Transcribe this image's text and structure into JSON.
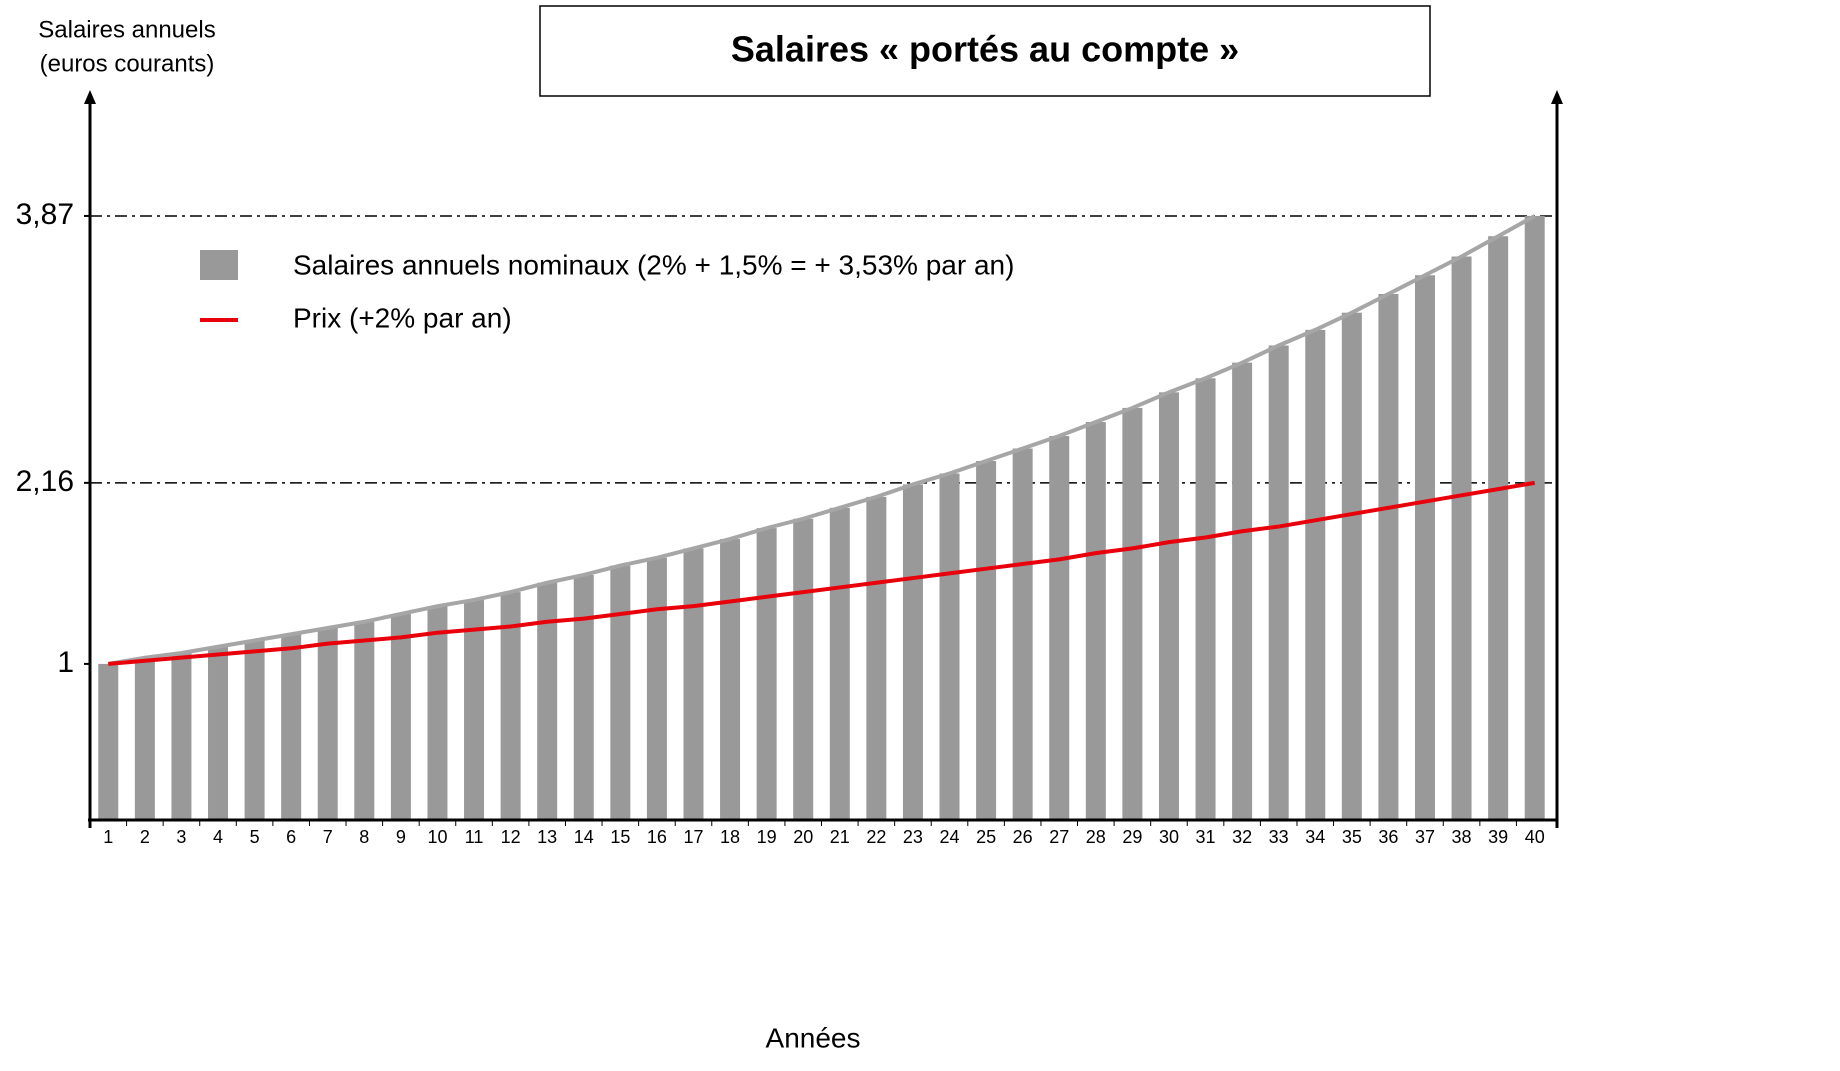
{
  "chart_data": {
    "type": "bar_line",
    "title": "Salaires « portés au compte »",
    "y_label": [
      "Salaires annuels",
      "(euros courants)"
    ],
    "x_label": "Années",
    "categories": [
      "1",
      "2",
      "3",
      "4",
      "5",
      "6",
      "7",
      "8",
      "9",
      "10",
      "11",
      "12",
      "13",
      "14",
      "15",
      "16",
      "17",
      "18",
      "19",
      "20",
      "21",
      "22",
      "23",
      "24",
      "25",
      "26",
      "27",
      "28",
      "29",
      "30",
      "31",
      "32",
      "33",
      "34",
      "35",
      "36",
      "37",
      "38",
      "39",
      "40"
    ],
    "series": [
      {
        "name": "Salaires annuels nominaux (2% + 1,5% = + 3,53% par an)",
        "color": "#999999",
        "line_color": "#a6a6a6",
        "kind": "bar",
        "values": [
          1.0,
          1.04,
          1.07,
          1.11,
          1.15,
          1.19,
          1.23,
          1.27,
          1.32,
          1.37,
          1.41,
          1.46,
          1.52,
          1.57,
          1.63,
          1.68,
          1.74,
          1.8,
          1.87,
          1.93,
          2.0,
          2.07,
          2.15,
          2.22,
          2.3,
          2.38,
          2.46,
          2.55,
          2.64,
          2.74,
          2.83,
          2.93,
          3.04,
          3.14,
          3.25,
          3.37,
          3.49,
          3.61,
          3.74,
          3.87
        ]
      },
      {
        "name": "Prix (+2% par an)",
        "color": "#e8000b",
        "kind": "line",
        "values": [
          1.0,
          1.02,
          1.04,
          1.06,
          1.08,
          1.1,
          1.13,
          1.15,
          1.17,
          1.2,
          1.22,
          1.24,
          1.27,
          1.29,
          1.32,
          1.35,
          1.37,
          1.4,
          1.43,
          1.46,
          1.49,
          1.52,
          1.55,
          1.58,
          1.61,
          1.64,
          1.67,
          1.71,
          1.74,
          1.78,
          1.81,
          1.85,
          1.88,
          1.92,
          1.96,
          2.0,
          2.04,
          2.08,
          2.12,
          2.16
        ]
      }
    ],
    "ylim": [
      0,
      4.6
    ],
    "yticks": [
      1,
      {
        "value": 2.16,
        "label": "2,16"
      },
      {
        "value": 3.87,
        "label": "3,87"
      }
    ],
    "reference_lines": [
      2.16,
      3.87
    ]
  }
}
